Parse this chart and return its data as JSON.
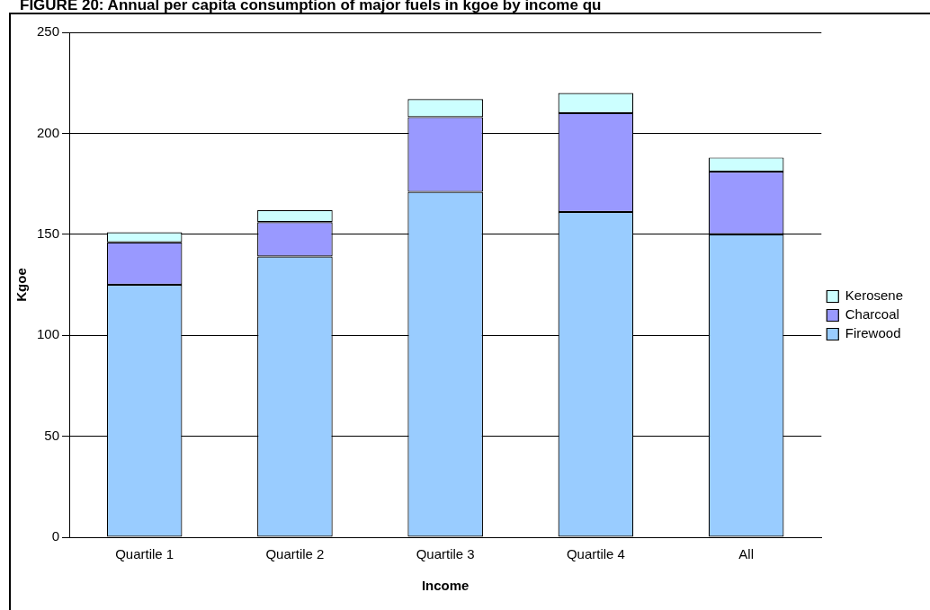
{
  "chart_data": {
    "type": "bar",
    "title": "FIGURE 20: Annual per capita consumption of major fuels in kgoe by income qu",
    "xlabel": "Income",
    "ylabel": "Kgoe",
    "categories": [
      "Quartile 1",
      "Quartile 2",
      "Quartile 3",
      "Quartile 4",
      "All"
    ],
    "series": [
      {
        "name": "Firewood",
        "color": "#99ccff",
        "values": [
          125,
          139,
          171,
          161,
          150
        ]
      },
      {
        "name": "Charcoal",
        "color": "#9999ff",
        "values": [
          21,
          17,
          37,
          49,
          31
        ]
      },
      {
        "name": "Kerosene",
        "color": "#ccffff",
        "values": [
          5,
          6,
          9,
          10,
          7
        ]
      }
    ],
    "stacked": true,
    "ylim": [
      0,
      250
    ],
    "yticks": [
      0,
      50,
      100,
      150,
      200,
      250
    ],
    "grid": "y",
    "legend": "right"
  }
}
